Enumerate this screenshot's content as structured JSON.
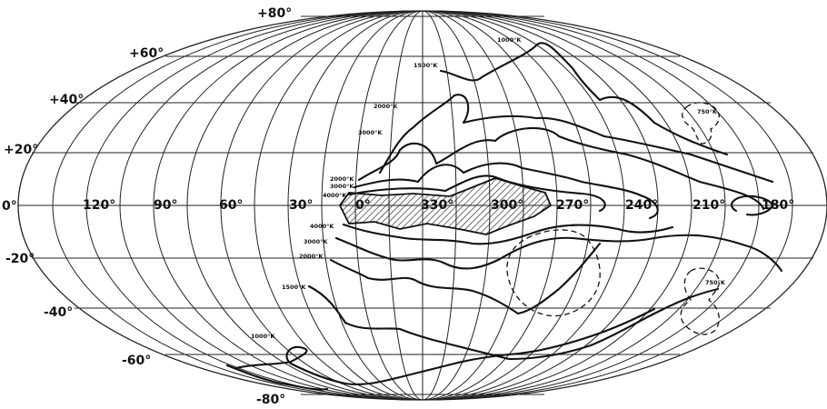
{
  "map": {
    "latitude_labels": [
      "+80°",
      "+60°",
      "+40°",
      "+20°",
      "0°",
      "-20°",
      "-40°",
      "-60°",
      "-80°"
    ],
    "longitude_labels": [
      "120°",
      "90°",
      "60°",
      "30°",
      "0°",
      "330°",
      "300°",
      "270°",
      "240°",
      "210°",
      "180°"
    ],
    "contour_labels": [
      "1000°K",
      "1500°K",
      "2000°K",
      "3000°K",
      "2000°K",
      "3000°K",
      "4000°K",
      "4000°K",
      "3000°K",
      "2000°K",
      "1500°K",
      "1000°K",
      "750°K",
      "750°K"
    ]
  }
}
